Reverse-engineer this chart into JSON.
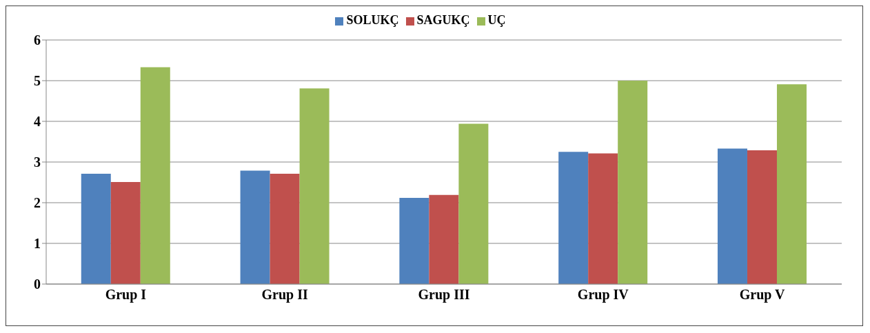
{
  "chart_data": {
    "type": "bar",
    "categories": [
      "Grup I",
      "Grup II",
      "Grup III",
      "Grup IV",
      "Grup V"
    ],
    "series": [
      {
        "name": "SOLUKÇ",
        "color": "#4f81bd",
        "values": [
          2.71,
          2.79,
          2.12,
          3.25,
          3.33
        ]
      },
      {
        "name": "SAGUKÇ",
        "color": "#c0504d",
        "values": [
          2.51,
          2.71,
          2.19,
          3.21,
          3.29
        ]
      },
      {
        "name": "UÇ",
        "color": "#9bbb59",
        "values": [
          5.33,
          4.81,
          3.94,
          5.0,
          4.91
        ]
      }
    ],
    "ylim": [
      0,
      6
    ],
    "yticks": [
      0,
      1,
      2,
      3,
      4,
      5,
      6
    ],
    "grid": "y",
    "legend": "top"
  }
}
